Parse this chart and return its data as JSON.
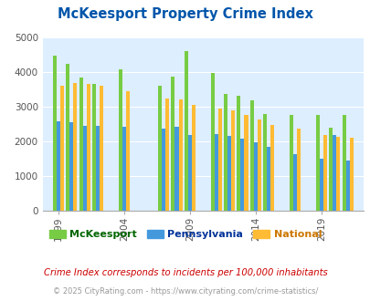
{
  "title": "McKeesport Property Crime Index",
  "title_color": "#0055aa",
  "subtitle": "Crime Index corresponds to incidents per 100,000 inhabitants",
  "footer": "© 2025 CityRating.com - https://www.cityrating.com/crime-statistics/",
  "years": [
    1999,
    2000,
    2001,
    2002,
    2004,
    2007,
    2008,
    2009,
    2011,
    2012,
    2013,
    2014,
    2015,
    2017,
    2019,
    2020,
    2021
  ],
  "mckeesport": [
    4480,
    4250,
    3840,
    3650,
    4080,
    3620,
    3880,
    4600,
    3970,
    3380,
    3310,
    3200,
    2780,
    2770,
    2760,
    2410,
    2760
  ],
  "pennsylvania": [
    2580,
    2550,
    2460,
    2450,
    2420,
    2360,
    2430,
    2200,
    2210,
    2170,
    2090,
    1980,
    1840,
    1640,
    1490,
    2200,
    1450
  ],
  "national": [
    3600,
    3680,
    3660,
    3620,
    3460,
    3250,
    3220,
    3060,
    2960,
    2900,
    2760,
    2640,
    2490,
    2370,
    2200,
    2130,
    2120
  ],
  "bar_colors": [
    "#77cc44",
    "#4499dd",
    "#ffbb33"
  ],
  "bg_color": "#ddeeff",
  "ylim": [
    0,
    5000
  ],
  "yticks": [
    0,
    1000,
    2000,
    3000,
    4000,
    5000
  ],
  "xtick_years": [
    1999,
    2004,
    2009,
    2014,
    2019
  ],
  "legend_labels": [
    "McKeesport",
    "Pennsylvania",
    "National"
  ],
  "legend_text_colors": [
    "#006600",
    "#003399",
    "#cc7700"
  ],
  "subtitle_color": "#cc0000",
  "footer_color": "#999999"
}
